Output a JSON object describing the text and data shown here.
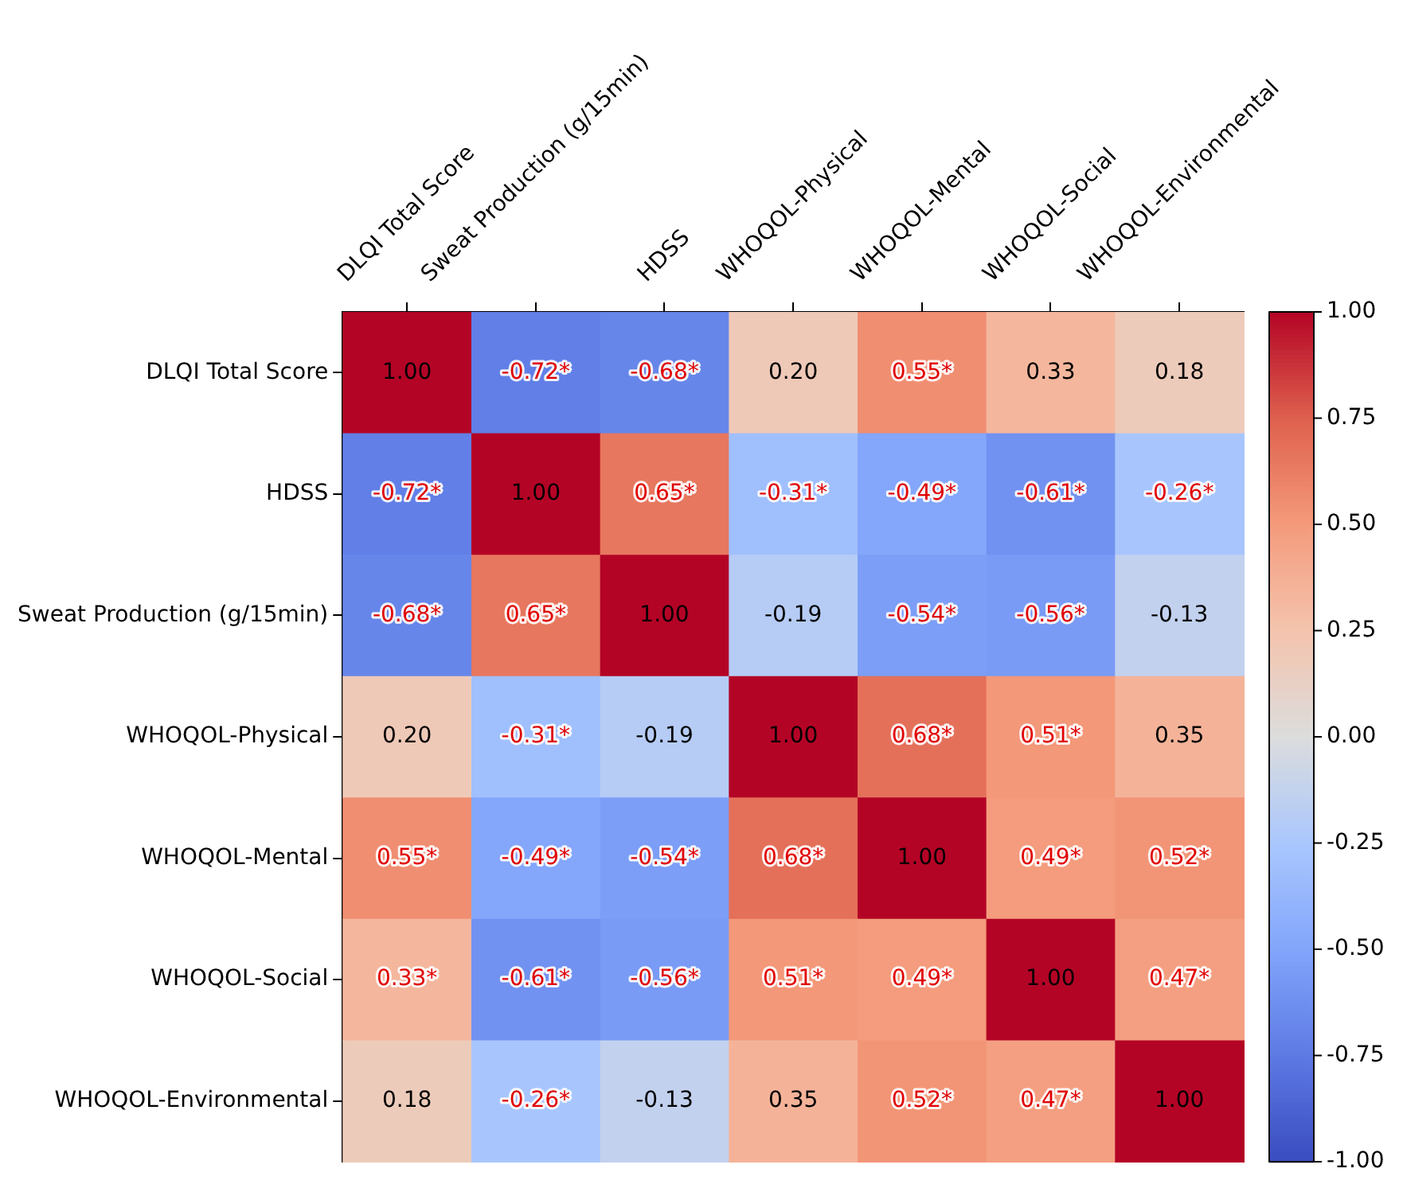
{
  "chart_data": {
    "type": "heatmap",
    "categories": [
      "DLQI Total Score",
      "Sweat Production (g/15min)",
      "HDSS",
      "WHOQOL-Physical",
      "WHOQOL-Mental",
      "WHOQOL-Social",
      "WHOQOL-Environmental"
    ],
    "y_categories": [
      "DLQI Total Score",
      "HDSS",
      "Sweat Production (g/15min)",
      "WHOQOL-Physical",
      "WHOQOL-Mental",
      "WHOQOL-Social",
      "WHOQOL-Environmental"
    ],
    "cells": [
      [
        1.0,
        -0.72,
        -0.68,
        0.2,
        0.55,
        0.33,
        0.18
      ],
      [
        -0.72,
        1.0,
        0.65,
        -0.31,
        -0.49,
        -0.61,
        -0.26
      ],
      [
        -0.68,
        0.65,
        1.0,
        -0.19,
        -0.54,
        -0.56,
        -0.13
      ],
      [
        0.2,
        -0.31,
        -0.19,
        1.0,
        0.68,
        0.51,
        0.35
      ],
      [
        0.55,
        -0.49,
        -0.54,
        0.68,
        1.0,
        0.49,
        0.52
      ],
      [
        0.33,
        -0.61,
        -0.56,
        0.51,
        0.49,
        1.0,
        0.47
      ],
      [
        0.18,
        -0.26,
        -0.13,
        0.35,
        0.52,
        0.47,
        1.0
      ]
    ],
    "cell_labels": [
      [
        "1.00",
        "-0.72*",
        "-0.68*",
        "0.20",
        "0.55*",
        "0.33",
        "0.18"
      ],
      [
        "-0.72*",
        "1.00",
        "0.65*",
        "-0.31*",
        "-0.49*",
        "-0.61*",
        "-0.26*"
      ],
      [
        "-0.68*",
        "0.65*",
        "1.00",
        "-0.19",
        "-0.54*",
        "-0.56*",
        "-0.13"
      ],
      [
        "0.20",
        "-0.31*",
        "-0.19",
        "1.00",
        "0.68*",
        "0.51*",
        "0.35"
      ],
      [
        "0.55*",
        "-0.49*",
        "-0.54*",
        "0.68*",
        "1.00",
        "0.49*",
        "0.52*"
      ],
      [
        "0.33*",
        "-0.61*",
        "-0.56*",
        "0.51*",
        "0.49*",
        "1.00",
        "0.47*"
      ],
      [
        "0.18",
        "-0.26*",
        "-0.13",
        "0.35",
        "0.52*",
        "0.47*",
        "1.00"
      ]
    ],
    "clim": [
      -1,
      1
    ],
    "cticks": [
      {
        "value": 1,
        "label": "1.00"
      },
      {
        "value": 0.75,
        "label": "0.75"
      },
      {
        "value": 0.5,
        "label": "0.50"
      },
      {
        "value": 0.25,
        "label": "0.25"
      },
      {
        "value": 0,
        "label": "0.00"
      },
      {
        "value": -0.25,
        "label": "-0.25"
      },
      {
        "value": -0.5,
        "label": "-0.50"
      },
      {
        "value": -0.75,
        "label": "-0.75"
      },
      {
        "value": -1,
        "label": "-1.00"
      }
    ]
  }
}
